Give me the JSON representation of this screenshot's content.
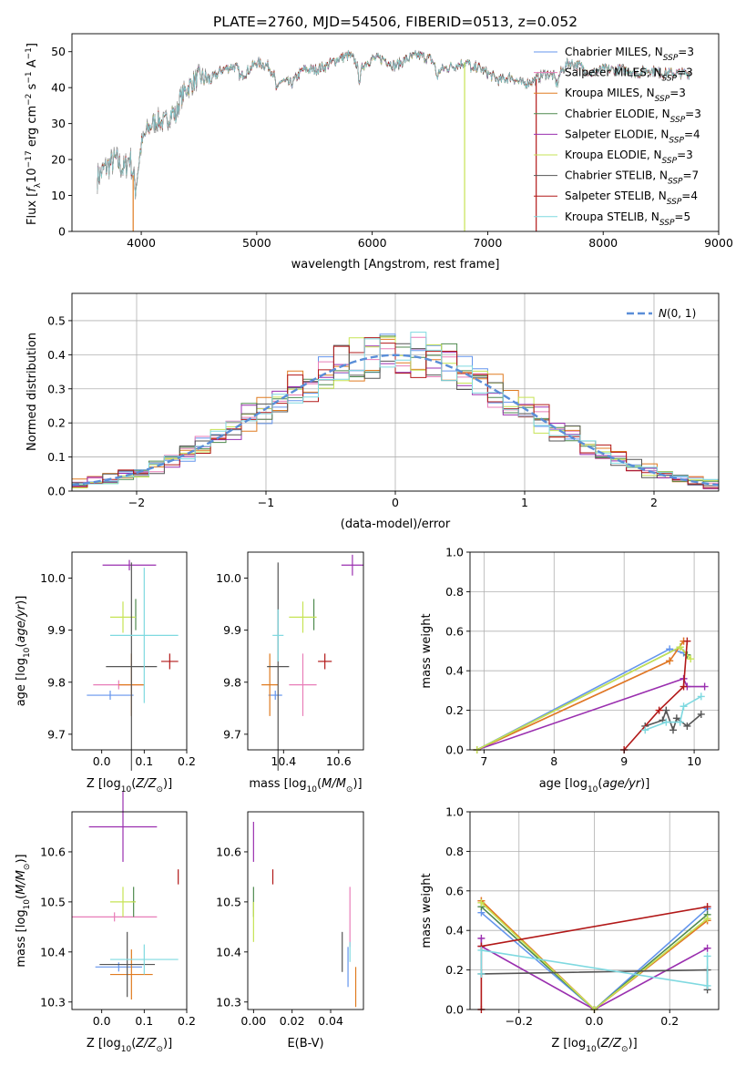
{
  "colors": {
    "chabrier_miles": "#6495ED",
    "salpeter_miles": "#E87DB8",
    "kroupa_miles": "#E07B20",
    "chabrier_elodie": "#4F8A4F",
    "salpeter_elodie": "#9A2FAF",
    "kroupa_elodie": "#C6E354",
    "chabrier_stelib": "#555555",
    "salpeter_stelib": "#B21818",
    "kroupa_stelib": "#7FD9E0"
  },
  "chart_data": [
    {
      "id": "spectrum",
      "type": "line",
      "title": "PLATE=2760, MJD=54506, FIBERID=0513, z=0.052",
      "xlabel": "wavelength [Angstrom, rest frame]",
      "ylabel": "Flux [f_λ10^-17 erg cm^-2 s^-1 A^-1]",
      "xlim": [
        3400,
        9000
      ],
      "ylim": [
        0,
        55
      ],
      "xticks": [
        4000,
        5000,
        6000,
        7000,
        8000,
        9000
      ],
      "yticks": [
        0,
        10,
        20,
        30,
        40,
        50
      ],
      "legend_position": "top-right",
      "spectrum": {
        "x": [
          3620,
          3700,
          3780,
          3850,
          3900,
          3950,
          4000,
          4050,
          4100,
          4150,
          4200,
          4300,
          4400,
          4500,
          4600,
          4700,
          4800,
          4900,
          5000,
          5100,
          5200,
          5300,
          5400,
          5500,
          5600,
          5700,
          5800,
          5900,
          6000,
          6100,
          6200,
          6300,
          6400,
          6500,
          6600,
          6700,
          6800,
          6900,
          7000,
          7100,
          7200,
          7300,
          7400,
          7500,
          7600,
          7700,
          7800,
          7900,
          8000,
          8100,
          8200,
          8300,
          8400,
          8500,
          8600,
          8700,
          8750
        ],
        "y": [
          15,
          18,
          20,
          17,
          21,
          12,
          24,
          28,
          30,
          31,
          30,
          35,
          40,
          43,
          42,
          45,
          46,
          44,
          47,
          46,
          42,
          41,
          45,
          45,
          46,
          48,
          49,
          46,
          48,
          48,
          46,
          48,
          49,
          48,
          45,
          46,
          47,
          46,
          44,
          42,
          43,
          41,
          42,
          44,
          43,
          47,
          46,
          44,
          45,
          45,
          45,
          44,
          45,
          44,
          44,
          44,
          44
        ]
      },
      "series": [
        {
          "name": "Chabrier MILES, N_SSP=3",
          "color_key": "chabrier_miles"
        },
        {
          "name": "Salpeter MILES, N_SSP=3",
          "color_key": "salpeter_miles"
        },
        {
          "name": "Kroupa MILES, N_SSP=3",
          "color_key": "kroupa_miles"
        },
        {
          "name": "Chabrier ELODIE, N_SSP=3",
          "color_key": "chabrier_elodie"
        },
        {
          "name": "Salpeter ELODIE, N_SSP=4",
          "color_key": "salpeter_elodie"
        },
        {
          "name": "Kroupa ELODIE, N_SSP=3",
          "color_key": "kroupa_elodie"
        },
        {
          "name": "Chabrier STELIB, N_SSP=7",
          "color_key": "chabrier_stelib"
        },
        {
          "name": "Salpeter STELIB, N_SSP=4",
          "color_key": "salpeter_stelib"
        },
        {
          "name": "Kroupa STELIB, N_SSP=5",
          "color_key": "kroupa_stelib"
        }
      ],
      "drops": [
        {
          "x": 3930,
          "color_key": "kroupa_miles"
        },
        {
          "x": 6800,
          "color_key": "kroupa_elodie"
        },
        {
          "x": 7420,
          "color_key": "salpeter_stelib"
        }
      ]
    },
    {
      "id": "residuals",
      "type": "line",
      "xlabel": "(data-model)/error",
      "ylabel": "Normed distribution",
      "xlim": [
        -2.5,
        2.5
      ],
      "ylim": [
        0,
        0.58
      ],
      "xticks": [
        -2,
        -1,
        0,
        1,
        2
      ],
      "yticks": [
        0.0,
        0.1,
        0.2,
        0.3,
        0.4,
        0.5
      ],
      "grid": true,
      "legend_position": "top-right",
      "gaussian": {
        "name": "N(0,1)",
        "mu": 0,
        "sigma": 1,
        "color": "#5A8ED8"
      },
      "hist_bins": 42
    },
    {
      "id": "age_vs_Z",
      "type": "scatter",
      "xlabel": "Z [log10(Z/Z_sun)]",
      "ylabel": "age  [log10(age/yr)]",
      "xlim": [
        -0.07,
        0.2
      ],
      "ylim": [
        9.67,
        10.05
      ],
      "xticks": [
        0.0,
        0.1,
        0.2
      ],
      "yticks": [
        9.7,
        9.8,
        9.9,
        10.0
      ],
      "points": [
        {
          "color_key": "chabrier_miles",
          "x": 0.02,
          "xerr": 0.055,
          "y": 9.775,
          "yerr": 0.0
        },
        {
          "color_key": "salpeter_miles",
          "x": 0.04,
          "xerr": 0.06,
          "y": 9.795,
          "yerr": 0.0
        },
        {
          "color_key": "kroupa_miles",
          "x": 0.07,
          "xerr": 0.03,
          "y": 9.795,
          "yerr": 0.06
        },
        {
          "color_key": "chabrier_elodie",
          "x": 0.08,
          "xerr": 0.0,
          "y": 9.93,
          "yerr": 0.03
        },
        {
          "color_key": "salpeter_elodie",
          "x": 0.065,
          "xerr": 0.063,
          "y": 10.025,
          "yerr": 0.01
        },
        {
          "color_key": "kroupa_elodie",
          "x": 0.05,
          "xerr": 0.03,
          "y": 9.925,
          "yerr": 0.03
        },
        {
          "color_key": "chabrier_stelib",
          "x": 0.07,
          "xerr": 0.06,
          "y": 9.83,
          "yerr": 0.2
        },
        {
          "color_key": "salpeter_stelib",
          "x": 0.16,
          "xerr": 0.02,
          "y": 9.84,
          "yerr": 0.015
        },
        {
          "color_key": "kroupa_stelib",
          "x": 0.1,
          "xerr": 0.08,
          "y": 9.89,
          "yerr": 0.13
        }
      ]
    },
    {
      "id": "age_vs_mass",
      "type": "scatter",
      "xlabel": "mass [log10(M/M_sun)]",
      "ylabel": "",
      "xlim": [
        10.27,
        10.69
      ],
      "ylim": [
        9.67,
        10.05
      ],
      "xticks": [
        10.4,
        10.6
      ],
      "yticks": [
        9.7,
        9.8,
        9.9,
        10.0
      ],
      "points": [
        {
          "color_key": "chabrier_miles",
          "x": 10.37,
          "xerr": 0.025,
          "y": 9.775,
          "yerr": 0.0
        },
        {
          "color_key": "salpeter_miles",
          "x": 10.47,
          "xerr": 0.05,
          "y": 9.795,
          "yerr": 0.06
        },
        {
          "color_key": "kroupa_miles",
          "x": 10.35,
          "xerr": 0.03,
          "y": 9.795,
          "yerr": 0.06
        },
        {
          "color_key": "chabrier_elodie",
          "x": 10.51,
          "xerr": 0.0,
          "y": 9.93,
          "yerr": 0.03
        },
        {
          "color_key": "salpeter_elodie",
          "x": 10.65,
          "xerr": 0.04,
          "y": 10.025,
          "yerr": 0.02
        },
        {
          "color_key": "kroupa_elodie",
          "x": 10.47,
          "xerr": 0.05,
          "y": 9.925,
          "yerr": 0.03
        },
        {
          "color_key": "chabrier_stelib",
          "x": 10.38,
          "xerr": 0.04,
          "y": 9.83,
          "yerr": 0.2
        },
        {
          "color_key": "salpeter_stelib",
          "x": 10.55,
          "xerr": 0.025,
          "y": 9.84,
          "yerr": 0.015
        },
        {
          "color_key": "kroupa_stelib",
          "x": 10.38,
          "xerr": 0.02,
          "y": 9.89,
          "yerr": 0.05
        }
      ]
    },
    {
      "id": "massweight_vs_age",
      "type": "line",
      "xlabel": "age  [log10(age/yr)]",
      "ylabel": "mass weight",
      "xlim": [
        6.8,
        10.35
      ],
      "ylim": [
        0,
        1.0
      ],
      "xticks": [
        7,
        8,
        9,
        10
      ],
      "yticks": [
        0.0,
        0.2,
        0.4,
        0.6,
        0.8,
        1.0
      ],
      "grid": true,
      "series": [
        {
          "color_key": "chabrier_miles",
          "x": [
            6.9,
            9.65,
            9.85
          ],
          "y": [
            0.0,
            0.51,
            0.49
          ]
        },
        {
          "color_key": "salpeter_miles",
          "x": [
            6.9,
            9.65,
            9.85
          ],
          "y": [
            0.0,
            0.45,
            0.55
          ]
        },
        {
          "color_key": "kroupa_miles",
          "x": [
            6.9,
            9.65,
            9.85
          ],
          "y": [
            0.0,
            0.45,
            0.55
          ]
        },
        {
          "color_key": "chabrier_elodie",
          "x": [
            6.9,
            9.8,
            9.9
          ],
          "y": [
            0.0,
            0.52,
            0.48
          ]
        },
        {
          "color_key": "salpeter_elodie",
          "x": [
            6.9,
            9.85,
            9.9,
            10.15
          ],
          "y": [
            0.0,
            0.36,
            0.32,
            0.32
          ]
        },
        {
          "color_key": "kroupa_elodie",
          "x": [
            6.9,
            9.8,
            9.95
          ],
          "y": [
            0.0,
            0.52,
            0.46
          ]
        },
        {
          "color_key": "chabrier_stelib",
          "x": [
            9.3,
            9.55,
            9.6,
            9.7,
            9.75,
            9.9,
            10.1
          ],
          "y": [
            0.12,
            0.15,
            0.2,
            0.1,
            0.16,
            0.12,
            0.18
          ]
        },
        {
          "color_key": "salpeter_stelib",
          "x": [
            9.0,
            9.5,
            9.85,
            9.9
          ],
          "y": [
            0.0,
            0.2,
            0.32,
            0.55
          ]
        },
        {
          "color_key": "kroupa_stelib",
          "x": [
            9.3,
            9.6,
            9.8,
            9.85,
            10.1
          ],
          "y": [
            0.1,
            0.14,
            0.14,
            0.22,
            0.27
          ]
        }
      ]
    },
    {
      "id": "mass_vs_Z",
      "type": "scatter",
      "xlabel": "Z [log10(Z/Z_sun)]",
      "ylabel": "mass [log10(M/M_sun)]",
      "xlim": [
        -0.07,
        0.2
      ],
      "ylim": [
        10.285,
        10.68
      ],
      "xticks": [
        0.0,
        0.1,
        0.2
      ],
      "yticks": [
        10.3,
        10.4,
        10.5,
        10.6
      ],
      "points": [
        {
          "color_key": "chabrier_miles",
          "x": 0.04,
          "xerr": 0.055,
          "y": 10.37,
          "yerr": 0.0
        },
        {
          "color_key": "salpeter_miles",
          "x": 0.03,
          "xerr": 0.1,
          "y": 10.47,
          "yerr": 0.0
        },
        {
          "color_key": "kroupa_miles",
          "x": 0.07,
          "xerr": 0.05,
          "y": 10.355,
          "yerr": 0.05
        },
        {
          "color_key": "chabrier_elodie",
          "x": 0.075,
          "xerr": 0.005,
          "y": 10.5,
          "yerr": 0.03
        },
        {
          "color_key": "salpeter_elodie",
          "x": 0.05,
          "xerr": 0.08,
          "y": 10.65,
          "yerr": 0.07
        },
        {
          "color_key": "kroupa_elodie",
          "x": 0.05,
          "xerr": 0.03,
          "y": 10.5,
          "yerr": 0.03
        },
        {
          "color_key": "chabrier_stelib",
          "x": 0.06,
          "xerr": 0.065,
          "y": 10.375,
          "yerr": 0.065
        },
        {
          "color_key": "salpeter_stelib",
          "x": 0.18,
          "xerr": 0.0,
          "y": 10.55,
          "yerr": 0.015
        },
        {
          "color_key": "kroupa_stelib",
          "x": 0.1,
          "xerr": 0.08,
          "y": 10.385,
          "yerr": 0.03
        }
      ]
    },
    {
      "id": "mass_vs_ebv",
      "type": "scatter",
      "xlabel": "E(B-V)",
      "ylabel": "",
      "xlim": [
        -0.003,
        0.057
      ],
      "ylim": [
        10.285,
        10.68
      ],
      "xticks": [
        0.0,
        0.02,
        0.04
      ],
      "yticks": [
        10.3,
        10.4,
        10.5,
        10.6
      ],
      "points": [
        {
          "color_key": "chabrier_miles",
          "x": 0.049,
          "y": 10.37,
          "yerr": 0.04
        },
        {
          "color_key": "salpeter_miles",
          "x": 0.05,
          "y": 10.47,
          "yerr": 0.06
        },
        {
          "color_key": "kroupa_miles",
          "x": 0.053,
          "y": 10.33,
          "yerr": 0.04
        },
        {
          "color_key": "chabrier_elodie",
          "x": 0.0,
          "y": 10.5,
          "yerr": 0.03
        },
        {
          "color_key": "salpeter_elodie",
          "x": 0.0,
          "y": 10.62,
          "yerr": 0.04
        },
        {
          "color_key": "kroupa_elodie",
          "x": 0.0,
          "y": 10.46,
          "yerr": 0.04
        },
        {
          "color_key": "chabrier_stelib",
          "x": 0.046,
          "y": 10.4,
          "yerr": 0.04
        },
        {
          "color_key": "salpeter_stelib",
          "x": 0.01,
          "y": 10.55,
          "yerr": 0.015
        },
        {
          "color_key": "kroupa_stelib",
          "x": 0.05,
          "y": 10.4,
          "yerr": 0.02
        }
      ]
    },
    {
      "id": "massweight_vs_Z",
      "type": "line",
      "xlabel": "Z [log10(Z/Z_sun)]",
      "ylabel": "mass weight",
      "xlim": [
        -0.33,
        0.33
      ],
      "ylim": [
        0,
        1.0
      ],
      "xticks": [
        -0.2,
        0.0,
        0.2
      ],
      "yticks": [
        0.0,
        0.2,
        0.4,
        0.6,
        0.8,
        1.0
      ],
      "grid": true,
      "series": [
        {
          "color_key": "chabrier_miles",
          "x": [
            -0.3,
            0.0,
            0.3
          ],
          "y": [
            0.49,
            0.0,
            0.51
          ]
        },
        {
          "color_key": "salpeter_miles",
          "x": [
            -0.3,
            0.0,
            0.3
          ],
          "y": [
            0.55,
            0.0,
            0.45
          ]
        },
        {
          "color_key": "kroupa_miles",
          "x": [
            -0.3,
            0.0,
            0.3
          ],
          "y": [
            0.55,
            0.0,
            0.45
          ]
        },
        {
          "color_key": "chabrier_elodie",
          "x": [
            -0.3,
            0.0,
            0.3
          ],
          "y": [
            0.52,
            0.0,
            0.48
          ]
        },
        {
          "color_key": "salpeter_elodie",
          "x": [
            -0.3,
            -0.3,
            0.0,
            0.3
          ],
          "y": [
            0.36,
            0.32,
            0.0,
            0.31
          ]
        },
        {
          "color_key": "kroupa_elodie",
          "x": [
            -0.3,
            0.0,
            0.3
          ],
          "y": [
            0.54,
            0.0,
            0.46
          ]
        },
        {
          "color_key": "chabrier_stelib",
          "x": [
            -0.3,
            0.3,
            0.3
          ],
          "y": [
            0.18,
            0.2,
            0.1
          ]
        },
        {
          "color_key": "salpeter_stelib",
          "x": [
            -0.3,
            -0.3,
            0.3
          ],
          "y": [
            0.0,
            0.32,
            0.52
          ]
        },
        {
          "color_key": "kroupa_stelib",
          "x": [
            -0.3,
            -0.3,
            0.3,
            0.3
          ],
          "y": [
            0.18,
            0.3,
            0.12,
            0.27
          ]
        }
      ]
    }
  ]
}
